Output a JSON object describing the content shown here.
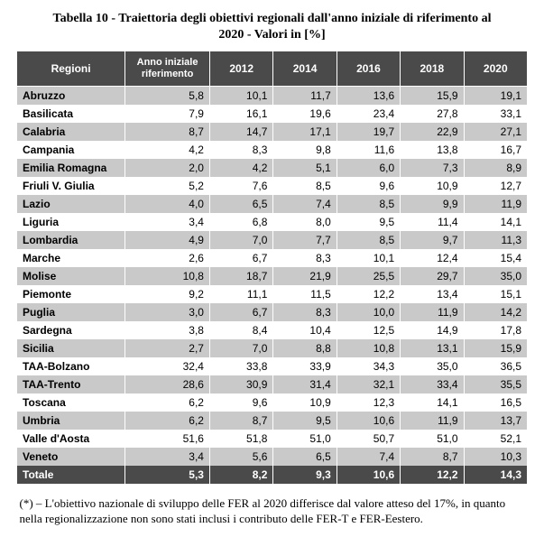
{
  "title_line1": "Tabella 10 - Traiettoria degli obiettivi regionali dall'anno iniziale di riferimento al",
  "title_line2": "2020 - Valori in [%]",
  "table": {
    "headers": {
      "region": "Regioni",
      "anno_iniziale": "Anno iniziale riferimento",
      "years": [
        "2012",
        "2014",
        "2016",
        "2018",
        "2020"
      ]
    },
    "row_colors": {
      "even": "#ffffff",
      "odd": "#c9c9c9"
    },
    "header_bg": "#4a4a4a",
    "header_fg": "#ffffff",
    "rows": [
      {
        "name": "Abruzzo",
        "values": [
          "5,8",
          "10,1",
          "11,7",
          "13,6",
          "15,9",
          "19,1"
        ]
      },
      {
        "name": "Basilicata",
        "values": [
          "7,9",
          "16,1",
          "19,6",
          "23,4",
          "27,8",
          "33,1"
        ]
      },
      {
        "name": "Calabria",
        "values": [
          "8,7",
          "14,7",
          "17,1",
          "19,7",
          "22,9",
          "27,1"
        ]
      },
      {
        "name": "Campania",
        "values": [
          "4,2",
          "8,3",
          "9,8",
          "11,6",
          "13,8",
          "16,7"
        ]
      },
      {
        "name": "Emilia Romagna",
        "values": [
          "2,0",
          "4,2",
          "5,1",
          "6,0",
          "7,3",
          "8,9"
        ]
      },
      {
        "name": "Friuli V. Giulia",
        "values": [
          "5,2",
          "7,6",
          "8,5",
          "9,6",
          "10,9",
          "12,7"
        ]
      },
      {
        "name": "Lazio",
        "values": [
          "4,0",
          "6,5",
          "7,4",
          "8,5",
          "9,9",
          "11,9"
        ]
      },
      {
        "name": "Liguria",
        "values": [
          "3,4",
          "6,8",
          "8,0",
          "9,5",
          "11,4",
          "14,1"
        ]
      },
      {
        "name": "Lombardia",
        "values": [
          "4,9",
          "7,0",
          "7,7",
          "8,5",
          "9,7",
          "11,3"
        ]
      },
      {
        "name": "Marche",
        "values": [
          "2,6",
          "6,7",
          "8,3",
          "10,1",
          "12,4",
          "15,4"
        ]
      },
      {
        "name": "Molise",
        "values": [
          "10,8",
          "18,7",
          "21,9",
          "25,5",
          "29,7",
          "35,0"
        ]
      },
      {
        "name": "Piemonte",
        "values": [
          "9,2",
          "11,1",
          "11,5",
          "12,2",
          "13,4",
          "15,1"
        ]
      },
      {
        "name": "Puglia",
        "values": [
          "3,0",
          "6,7",
          "8,3",
          "10,0",
          "11,9",
          "14,2"
        ]
      },
      {
        "name": "Sardegna",
        "values": [
          "3,8",
          "8,4",
          "10,4",
          "12,5",
          "14,9",
          "17,8"
        ]
      },
      {
        "name": "Sicilia",
        "values": [
          "2,7",
          "7,0",
          "8,8",
          "10,8",
          "13,1",
          "15,9"
        ]
      },
      {
        "name": "TAA-Bolzano",
        "values": [
          "32,4",
          "33,8",
          "33,9",
          "34,3",
          "35,0",
          "36,5"
        ]
      },
      {
        "name": "TAA-Trento",
        "values": [
          "28,6",
          "30,9",
          "31,4",
          "32,1",
          "33,4",
          "35,5"
        ]
      },
      {
        "name": "Toscana",
        "values": [
          "6,2",
          "9,6",
          "10,9",
          "12,3",
          "14,1",
          "16,5"
        ]
      },
      {
        "name": "Umbria",
        "values": [
          "6,2",
          "8,7",
          "9,5",
          "10,6",
          "11,9",
          "13,7"
        ]
      },
      {
        "name": "Valle d'Aosta",
        "values": [
          "51,6",
          "51,8",
          "51,0",
          "50,7",
          "51,0",
          "52,1"
        ]
      },
      {
        "name": "Veneto",
        "values": [
          "3,4",
          "5,6",
          "6,5",
          "7,4",
          "8,7",
          "10,3"
        ]
      }
    ],
    "total": {
      "name": "Totale",
      "values": [
        "5,3",
        "8,2",
        "9,3",
        "10,6",
        "12,2",
        "14,3"
      ]
    }
  },
  "footnote": "(*) – L'obiettivo nazionale di sviluppo delle FER al 2020 differisce dal valore atteso del 17%, in quanto nella regionalizzazione non sono stati inclusi i contributo delle FER-T e FER-Eestero."
}
